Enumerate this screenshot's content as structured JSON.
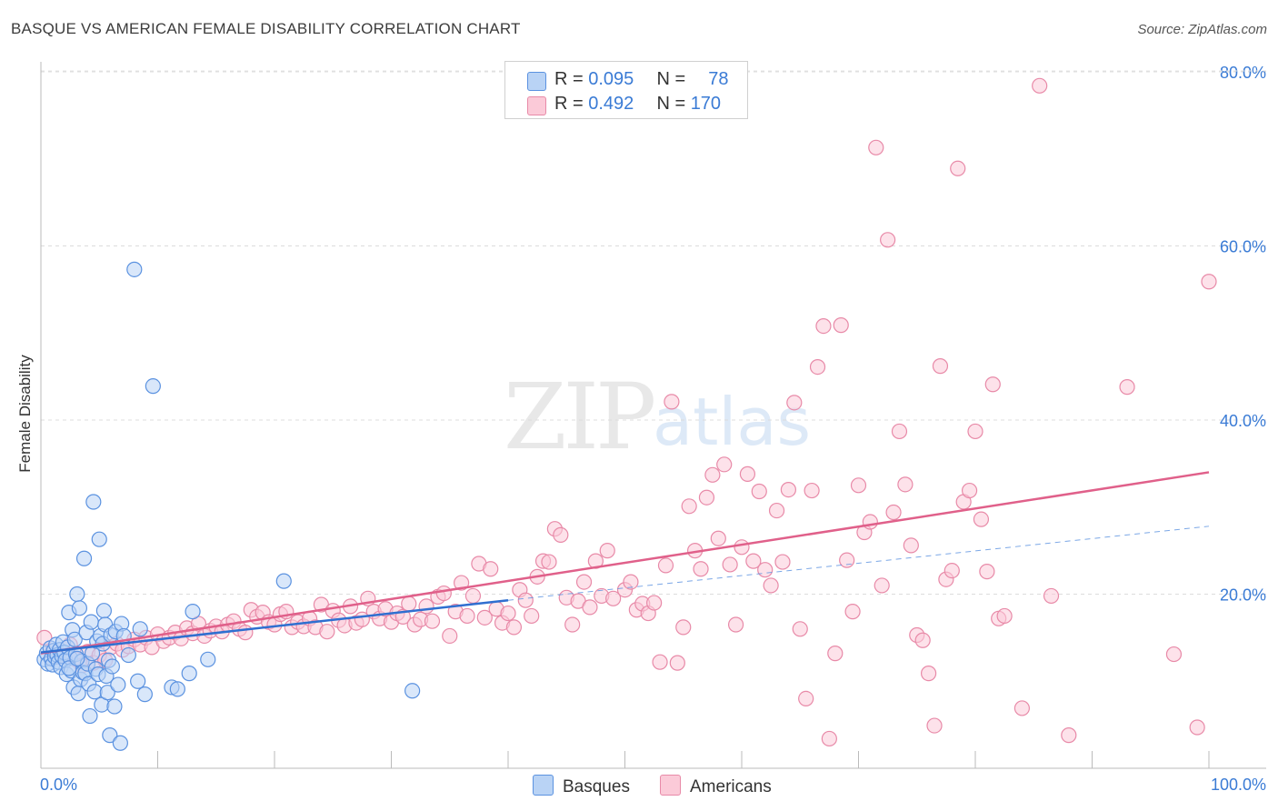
{
  "title": "BASQUE VS AMERICAN FEMALE DISABILITY CORRELATION CHART",
  "source": "Source: ZipAtlas.com",
  "watermark": {
    "zip": "ZIP",
    "atlas": "atlas"
  },
  "legend": {
    "rows": [
      {
        "r_label": "R =",
        "r_value": "0.095",
        "n_label": "N =",
        "n_value": "78",
        "color": "#b9d3f5",
        "border": "#5b92e0"
      },
      {
        "r_label": "R =",
        "r_value": "0.492",
        "n_label": "N =",
        "n_value": "170",
        "color": "#fbcad8",
        "border": "#e88aa8"
      }
    ]
  },
  "bottom_legend": [
    {
      "label": "Basques",
      "color": "#b9d3f5",
      "border": "#5b92e0"
    },
    {
      "label": "Americans",
      "color": "#fbcad8",
      "border": "#e88aa8"
    }
  ],
  "chart_data": {
    "type": "scatter",
    "title": "BASQUE VS AMERICAN FEMALE DISABILITY CORRELATION CHART",
    "xlabel": "",
    "ylabel": "Female Disability",
    "xlim": [
      0,
      100
    ],
    "ylim": [
      0,
      85
    ],
    "x_tick_labels": [
      "0.0%",
      "100.0%"
    ],
    "y_ticks": [
      20,
      40,
      60,
      80
    ],
    "y_tick_labels": [
      "20.0%",
      "40.0%",
      "60.0%",
      "80.0%"
    ],
    "grid": true,
    "series": [
      {
        "name": "Basques",
        "color": "#5b92e0",
        "fill": "#b9d3f5",
        "R": 0.095,
        "N": 78,
        "trend": {
          "x": [
            0,
            40
          ],
          "y": [
            13.3,
            19.3
          ]
        },
        "trend_extension": {
          "x": [
            40,
            100
          ],
          "y": [
            19.3,
            27.8
          ]
        },
        "points": [
          [
            0.3,
            12.5
          ],
          [
            0.5,
            13.2
          ],
          [
            0.6,
            12.0
          ],
          [
            0.8,
            13.8
          ],
          [
            0.9,
            12.6
          ],
          [
            1.0,
            11.9
          ],
          [
            1.1,
            13.5
          ],
          [
            1.2,
            12.8
          ],
          [
            1.3,
            14.2
          ],
          [
            1.4,
            13.0
          ],
          [
            1.5,
            12.2
          ],
          [
            1.6,
            13.6
          ],
          [
            1.7,
            11.6
          ],
          [
            1.8,
            12.9
          ],
          [
            1.9,
            14.5
          ],
          [
            2.0,
            13.3
          ],
          [
            2.1,
            12.4
          ],
          [
            2.2,
            10.8
          ],
          [
            2.3,
            13.9
          ],
          [
            2.4,
            17.9
          ],
          [
            2.5,
            12.7
          ],
          [
            2.6,
            11.2
          ],
          [
            2.7,
            15.9
          ],
          [
            2.8,
            9.3
          ],
          [
            2.9,
            14.8
          ],
          [
            3.0,
            13.1
          ],
          [
            3.1,
            20.0
          ],
          [
            3.2,
            8.6
          ],
          [
            3.3,
            18.4
          ],
          [
            3.4,
            10.2
          ],
          [
            3.5,
            12.3
          ],
          [
            3.6,
            11.0
          ],
          [
            3.7,
            24.1
          ],
          [
            3.8,
            10.9
          ],
          [
            3.9,
            15.6
          ],
          [
            4.0,
            12.0
          ],
          [
            4.1,
            9.7
          ],
          [
            4.2,
            6.0
          ],
          [
            4.3,
            16.8
          ],
          [
            4.4,
            13.2
          ],
          [
            4.5,
            30.6
          ],
          [
            4.6,
            8.8
          ],
          [
            4.7,
            11.4
          ],
          [
            4.8,
            14.6
          ],
          [
            4.9,
            10.8
          ],
          [
            5.0,
            26.3
          ],
          [
            5.1,
            15.2
          ],
          [
            5.2,
            7.3
          ],
          [
            5.3,
            14.3
          ],
          [
            5.4,
            18.1
          ],
          [
            5.5,
            16.5
          ],
          [
            5.6,
            10.6
          ],
          [
            5.7,
            8.7
          ],
          [
            5.8,
            12.4
          ],
          [
            5.9,
            3.8
          ],
          [
            6.0,
            15.3
          ],
          [
            6.1,
            11.7
          ],
          [
            6.3,
            7.1
          ],
          [
            6.4,
            15.7
          ],
          [
            6.6,
            9.6
          ],
          [
            6.8,
            2.9
          ],
          [
            6.9,
            16.6
          ],
          [
            7.1,
            15.2
          ],
          [
            8.0,
            57.3
          ],
          [
            8.3,
            10.0
          ],
          [
            8.5,
            16.0
          ],
          [
            8.9,
            8.5
          ],
          [
            9.6,
            43.9
          ],
          [
            11.2,
            9.3
          ],
          [
            11.7,
            9.1
          ],
          [
            12.7,
            10.9
          ],
          [
            13.0,
            18.0
          ],
          [
            14.3,
            12.5
          ],
          [
            20.8,
            21.5
          ],
          [
            31.8,
            8.9
          ],
          [
            7.5,
            13.0
          ],
          [
            2.4,
            11.5
          ],
          [
            3.1,
            12.6
          ]
        ]
      },
      {
        "name": "Americans",
        "color": "#e88aa8",
        "fill": "#fbcad8",
        "R": 0.492,
        "N": 170,
        "trend": {
          "x": [
            0,
            100
          ],
          "y": [
            13.2,
            34.0
          ]
        },
        "points": [
          [
            0.3,
            15.0
          ],
          [
            1.0,
            13.5
          ],
          [
            1.5,
            12.8
          ],
          [
            2.0,
            13.0
          ],
          [
            2.5,
            14.2
          ],
          [
            3.0,
            12.5
          ],
          [
            3.5,
            11.8
          ],
          [
            4.0,
            13.4
          ],
          [
            4.5,
            12.1
          ],
          [
            5.0,
            13.0
          ],
          [
            5.5,
            12.4
          ],
          [
            6.0,
            13.9
          ],
          [
            6.5,
            14.3
          ],
          [
            7.0,
            13.6
          ],
          [
            7.5,
            14.0
          ],
          [
            8.0,
            14.8
          ],
          [
            8.5,
            14.2
          ],
          [
            9.0,
            15.0
          ],
          [
            9.5,
            13.9
          ],
          [
            10.0,
            15.4
          ],
          [
            10.5,
            14.6
          ],
          [
            11.0,
            15.0
          ],
          [
            11.5,
            15.6
          ],
          [
            12.0,
            14.9
          ],
          [
            12.5,
            16.1
          ],
          [
            13.0,
            15.5
          ],
          [
            13.5,
            16.6
          ],
          [
            14.0,
            15.2
          ],
          [
            14.5,
            15.8
          ],
          [
            15.0,
            16.3
          ],
          [
            15.5,
            15.7
          ],
          [
            16.0,
            16.5
          ],
          [
            16.5,
            16.9
          ],
          [
            17.0,
            16.0
          ],
          [
            17.5,
            15.6
          ],
          [
            18.0,
            18.2
          ],
          [
            18.5,
            17.4
          ],
          [
            19.0,
            17.9
          ],
          [
            19.5,
            16.8
          ],
          [
            20.0,
            16.5
          ],
          [
            20.5,
            17.7
          ],
          [
            21.0,
            18.0
          ],
          [
            21.5,
            16.2
          ],
          [
            22.0,
            16.8
          ],
          [
            22.5,
            16.3
          ],
          [
            23.0,
            17.2
          ],
          [
            23.5,
            16.2
          ],
          [
            24.0,
            18.8
          ],
          [
            24.5,
            15.7
          ],
          [
            25.0,
            18.1
          ],
          [
            25.5,
            17.0
          ],
          [
            26.0,
            16.4
          ],
          [
            26.5,
            18.6
          ],
          [
            27.0,
            16.7
          ],
          [
            27.5,
            17.1
          ],
          [
            28.0,
            19.5
          ],
          [
            28.5,
            18.0
          ],
          [
            29.0,
            17.2
          ],
          [
            29.5,
            18.3
          ],
          [
            30.0,
            16.8
          ],
          [
            30.5,
            17.8
          ],
          [
            31.0,
            17.4
          ],
          [
            31.5,
            18.9
          ],
          [
            32.0,
            16.5
          ],
          [
            32.5,
            17.1
          ],
          [
            33.0,
            18.6
          ],
          [
            33.5,
            16.9
          ],
          [
            34.0,
            19.7
          ],
          [
            34.5,
            20.1
          ],
          [
            35.0,
            15.2
          ],
          [
            35.5,
            18.0
          ],
          [
            36.0,
            21.3
          ],
          [
            36.5,
            17.5
          ],
          [
            37.0,
            19.8
          ],
          [
            37.5,
            23.5
          ],
          [
            38.0,
            17.3
          ],
          [
            38.5,
            22.9
          ],
          [
            39.0,
            18.3
          ],
          [
            39.5,
            16.7
          ],
          [
            40.0,
            17.8
          ],
          [
            40.5,
            16.2
          ],
          [
            41.0,
            20.5
          ],
          [
            41.5,
            19.3
          ],
          [
            42.0,
            17.5
          ],
          [
            42.5,
            22.0
          ],
          [
            43.0,
            23.8
          ],
          [
            43.5,
            23.7
          ],
          [
            44.0,
            27.5
          ],
          [
            44.5,
            26.8
          ],
          [
            45.0,
            19.6
          ],
          [
            45.5,
            16.5
          ],
          [
            46.0,
            19.2
          ],
          [
            46.5,
            21.4
          ],
          [
            47.0,
            18.5
          ],
          [
            47.5,
            23.8
          ],
          [
            48.0,
            19.8
          ],
          [
            48.5,
            25.0
          ],
          [
            49.0,
            19.5
          ],
          [
            50.0,
            20.5
          ],
          [
            50.5,
            21.4
          ],
          [
            51.0,
            18.2
          ],
          [
            51.5,
            18.9
          ],
          [
            52.0,
            17.8
          ],
          [
            52.5,
            19.0
          ],
          [
            53.0,
            12.2
          ],
          [
            53.5,
            23.3
          ],
          [
            54.0,
            42.1
          ],
          [
            54.5,
            12.1
          ],
          [
            55.0,
            16.2
          ],
          [
            55.5,
            30.1
          ],
          [
            56.0,
            25.0
          ],
          [
            56.5,
            22.9
          ],
          [
            57.0,
            31.1
          ],
          [
            57.5,
            33.7
          ],
          [
            58.0,
            26.4
          ],
          [
            58.5,
            34.9
          ],
          [
            59.0,
            23.4
          ],
          [
            59.5,
            16.5
          ],
          [
            60.0,
            25.4
          ],
          [
            60.5,
            33.8
          ],
          [
            61.0,
            23.8
          ],
          [
            61.5,
            31.8
          ],
          [
            62.0,
            22.8
          ],
          [
            62.5,
            21.0
          ],
          [
            63.0,
            29.6
          ],
          [
            63.5,
            23.7
          ],
          [
            64.0,
            32.0
          ],
          [
            64.5,
            42.0
          ],
          [
            65.0,
            16.0
          ],
          [
            65.5,
            8.0
          ],
          [
            66.0,
            31.9
          ],
          [
            66.5,
            46.1
          ],
          [
            67.0,
            50.8
          ],
          [
            67.5,
            3.4
          ],
          [
            68.0,
            13.2
          ],
          [
            68.5,
            50.9
          ],
          [
            69.0,
            23.9
          ],
          [
            69.5,
            18.0
          ],
          [
            70.0,
            32.5
          ],
          [
            70.5,
            27.1
          ],
          [
            71.0,
            28.3
          ],
          [
            71.5,
            71.3
          ],
          [
            72.0,
            21.0
          ],
          [
            72.5,
            60.7
          ],
          [
            73.0,
            29.4
          ],
          [
            73.5,
            38.7
          ],
          [
            74.0,
            32.6
          ],
          [
            74.5,
            25.6
          ],
          [
            75.0,
            15.3
          ],
          [
            75.5,
            14.7
          ],
          [
            76.0,
            10.9
          ],
          [
            76.5,
            4.9
          ],
          [
            77.0,
            46.2
          ],
          [
            77.5,
            21.7
          ],
          [
            78.0,
            22.7
          ],
          [
            78.5,
            68.9
          ],
          [
            79.0,
            30.6
          ],
          [
            79.5,
            31.9
          ],
          [
            80.0,
            38.7
          ],
          [
            80.5,
            28.6
          ],
          [
            81.0,
            22.6
          ],
          [
            81.5,
            44.1
          ],
          [
            82.0,
            17.2
          ],
          [
            82.5,
            17.5
          ],
          [
            84.0,
            6.9
          ],
          [
            85.5,
            78.4
          ],
          [
            86.5,
            19.8
          ],
          [
            88.0,
            3.8
          ],
          [
            93.0,
            43.8
          ],
          [
            97.0,
            13.1
          ],
          [
            100.0,
            55.9
          ],
          [
            99.0,
            4.7
          ]
        ]
      }
    ]
  }
}
